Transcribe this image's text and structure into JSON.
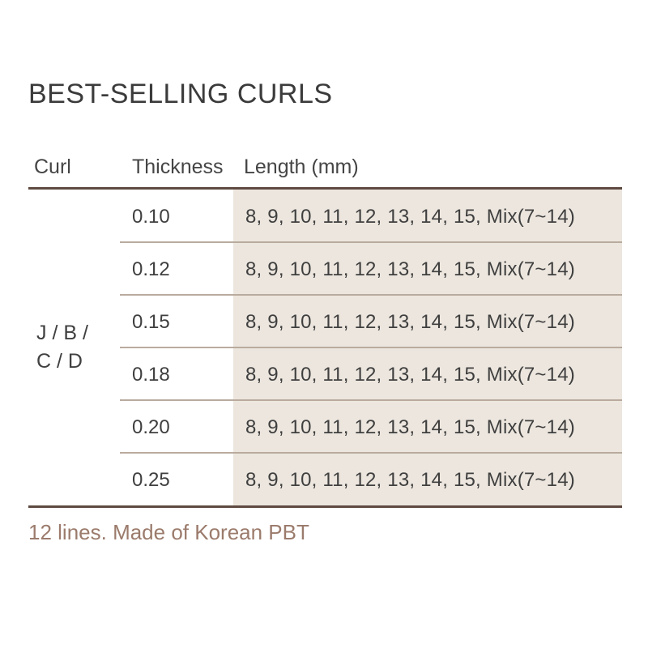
{
  "title": "BEST-SELLING CURLS",
  "table": {
    "columns": [
      "Curl",
      "Thickness",
      "Length (mm)"
    ],
    "curl_group": [
      "J / B /",
      "C / D"
    ],
    "rows": [
      {
        "thickness": "0.10",
        "lengths": "8, 9, 10, 11, 12, 13, 14, 15, Mix(7~14)"
      },
      {
        "thickness": "0.12",
        "lengths": "8, 9, 10, 11, 12, 13, 14, 15, Mix(7~14)"
      },
      {
        "thickness": "0.15",
        "lengths": "8, 9, 10, 11, 12, 13, 14, 15, Mix(7~14)"
      },
      {
        "thickness": "0.18",
        "lengths": "8, 9, 10, 11, 12, 13, 14, 15, Mix(7~14)"
      },
      {
        "thickness": "0.20",
        "lengths": "8, 9, 10, 11, 12, 13, 14, 15, Mix(7~14)"
      },
      {
        "thickness": "0.25",
        "lengths": "8, 9, 10, 11, 12, 13, 14, 15, Mix(7~14)"
      }
    ]
  },
  "footer": {
    "note": "12 lines. Made of Korean PBT"
  },
  "colors": {
    "border_dark": "#5e4a41",
    "row_divider": "#b9ab9e",
    "length_column_bg": "#ece6de",
    "body_text": "#3f3f3f",
    "footer_text": "#9b7b6c"
  }
}
